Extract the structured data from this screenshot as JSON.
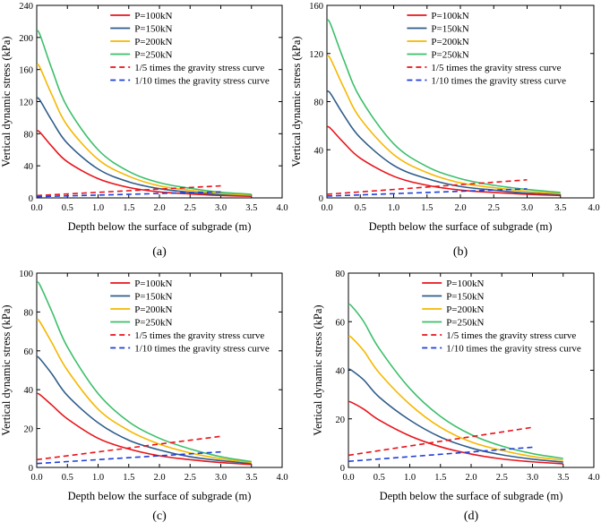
{
  "chart_data": [
    {
      "type": "line",
      "panel_label": "(a)",
      "xlabel": "Depth below the surface of subgrade (m)",
      "ylabel": "Vertical dynamic stress (kPa)",
      "xlim": [
        0.0,
        4.0
      ],
      "ylim": [
        0,
        240
      ],
      "xticks": [
        "0.0",
        "0.5",
        "1.0",
        "1.5",
        "2.0",
        "2.5",
        "3.0",
        "3.5",
        "4.0"
      ],
      "yticks": [
        "0",
        "40",
        "80",
        "120",
        "160",
        "200",
        "240"
      ],
      "series": [
        {
          "name": "P=100kN",
          "color": "#e8141b",
          "dash": "solid",
          "x": [
            0,
            0.05,
            0.25,
            0.5,
            1.0,
            1.5,
            2.0,
            2.5,
            3.0,
            3.5
          ],
          "values": [
            83,
            82,
            64,
            45,
            24,
            13,
            7.5,
            5,
            3,
            2
          ]
        },
        {
          "name": "P=150kN",
          "color": "#2f5d8a",
          "dash": "solid",
          "x": [
            0,
            0.05,
            0.25,
            0.5,
            1.0,
            1.5,
            2.0,
            2.5,
            3.0,
            3.5
          ],
          "values": [
            124,
            122,
            96,
            68,
            36,
            20,
            11.5,
            7,
            4,
            3
          ]
        },
        {
          "name": "P=200kN",
          "color": "#f5b800",
          "dash": "solid",
          "x": [
            0,
            0.05,
            0.25,
            0.5,
            1.0,
            1.5,
            2.0,
            2.5,
            3.0,
            3.5
          ],
          "values": [
            166,
            163,
            128,
            90,
            48,
            27,
            15,
            9.5,
            5.5,
            3.5
          ]
        },
        {
          "name": "P=250kN",
          "color": "#3cbf6a",
          "dash": "solid",
          "x": [
            0,
            0.05,
            0.25,
            0.5,
            1.0,
            1.5,
            2.0,
            2.5,
            3.0,
            3.5
          ],
          "values": [
            207,
            204,
            160,
            113,
            60,
            33,
            19,
            12,
            7,
            4.5
          ]
        },
        {
          "name": "1/5 times the gravity stress curve",
          "color": "#e8141b",
          "dash": "dashed",
          "x": [
            0,
            3.0
          ],
          "values": [
            2.9,
            15
          ]
        },
        {
          "name": "1/10 times the gravity stress curve",
          "color": "#1f3fd8",
          "dash": "dashed",
          "x": [
            0,
            3.0
          ],
          "values": [
            1.5,
            7.5
          ]
        }
      ]
    },
    {
      "type": "line",
      "panel_label": "(b)",
      "xlabel": "Depth below the surface of subgrade (m)",
      "ylabel": "Vertical dynamic stress (kPa)",
      "xlim": [
        0.0,
        4.0
      ],
      "ylim": [
        0,
        160
      ],
      "xticks": [
        "0.0",
        "0.5",
        "1.0",
        "1.5",
        "2.0",
        "2.5",
        "3.0",
        "3.5",
        "4.0"
      ],
      "yticks": [
        "0",
        "40",
        "80",
        "120",
        "160"
      ],
      "series": [
        {
          "name": "P=100kN",
          "color": "#e8141b",
          "dash": "solid",
          "x": [
            0,
            0.05,
            0.25,
            0.5,
            1.0,
            1.5,
            2.0,
            2.5,
            3.0,
            3.5
          ],
          "values": [
            59,
            58,
            46,
            33,
            18,
            10.5,
            6.5,
            4.5,
            3,
            2
          ]
        },
        {
          "name": "P=150kN",
          "color": "#2f5d8a",
          "dash": "solid",
          "x": [
            0,
            0.05,
            0.25,
            0.5,
            1.0,
            1.5,
            2.0,
            2.5,
            3.0,
            3.5
          ],
          "values": [
            88,
            87,
            69,
            50,
            27,
            16,
            9.5,
            6.5,
            4,
            3
          ]
        },
        {
          "name": "P=200kN",
          "color": "#f5b800",
          "dash": "solid",
          "x": [
            0,
            0.05,
            0.25,
            0.5,
            1.0,
            1.5,
            2.0,
            2.5,
            3.0,
            3.5
          ],
          "values": [
            117,
            116,
            92,
            66,
            36,
            21,
            12.5,
            8.5,
            5.5,
            3.5
          ]
        },
        {
          "name": "P=250kN",
          "color": "#3cbf6a",
          "dash": "solid",
          "x": [
            0,
            0.05,
            0.25,
            0.5,
            1.0,
            1.5,
            2.0,
            2.5,
            3.0,
            3.5
          ],
          "values": [
            147,
            145,
            115,
            83,
            45,
            26,
            16,
            10.5,
            7,
            4.5
          ]
        },
        {
          "name": "1/5 times the gravity stress curve",
          "color": "#e8141b",
          "dash": "dashed",
          "x": [
            0,
            3.0
          ],
          "values": [
            3,
            15
          ]
        },
        {
          "name": "1/10 times the gravity stress curve",
          "color": "#1f3fd8",
          "dash": "dashed",
          "x": [
            0,
            3.0
          ],
          "values": [
            1.5,
            7.5
          ]
        }
      ]
    },
    {
      "type": "line",
      "panel_label": "(c)",
      "xlabel": "Depth below the surface of subgrade (m)",
      "ylabel": "Vertical dynamic stress (kPa)",
      "xlim": [
        0.0,
        4.0
      ],
      "ylim": [
        0,
        100
      ],
      "xticks": [
        "0.0",
        "0.5",
        "1.0",
        "1.5",
        "2.0",
        "2.5",
        "3.0",
        "3.5",
        "4.0"
      ],
      "yticks": [
        "0",
        "20",
        "40",
        "60",
        "80",
        "100"
      ],
      "series": [
        {
          "name": "P=100kN",
          "color": "#e8141b",
          "dash": "solid",
          "x": [
            0,
            0.05,
            0.25,
            0.5,
            1.0,
            1.5,
            2.0,
            2.5,
            3.0,
            3.5
          ],
          "values": [
            38,
            37.5,
            32,
            25,
            15,
            9.5,
            6,
            4,
            2.5,
            1.5
          ]
        },
        {
          "name": "P=150kN",
          "color": "#2f5d8a",
          "dash": "solid",
          "x": [
            0,
            0.05,
            0.25,
            0.5,
            1.0,
            1.5,
            2.0,
            2.5,
            3.0,
            3.5
          ],
          "values": [
            57,
            56,
            48,
            37,
            23,
            14,
            9,
            5.5,
            3.5,
            2
          ]
        },
        {
          "name": "P=200kN",
          "color": "#f5b800",
          "dash": "solid",
          "x": [
            0,
            0.05,
            0.25,
            0.5,
            1.0,
            1.5,
            2.0,
            2.5,
            3.0,
            3.5
          ],
          "values": [
            76,
            75,
            64,
            50,
            30,
            19,
            12,
            7.5,
            4.5,
            2.5
          ]
        },
        {
          "name": "P=250kN",
          "color": "#3cbf6a",
          "dash": "solid",
          "x": [
            0,
            0.05,
            0.25,
            0.5,
            1.0,
            1.5,
            2.0,
            2.5,
            3.0,
            3.5
          ],
          "values": [
            95,
            94,
            80,
            62,
            38,
            23.5,
            15,
            9.5,
            5.5,
            3
          ]
        },
        {
          "name": "1/5 times the gravity stress curve",
          "color": "#e8141b",
          "dash": "dashed",
          "x": [
            0,
            3.0
          ],
          "values": [
            4,
            16
          ]
        },
        {
          "name": "1/10 times the gravity stress curve",
          "color": "#1f3fd8",
          "dash": "dashed",
          "x": [
            0,
            3.0
          ],
          "values": [
            2,
            8
          ]
        }
      ]
    },
    {
      "type": "line",
      "panel_label": "(d)",
      "xlabel": "Depth below the surface of subgrade (m)",
      "ylabel": "Vertical dynamic stress (kPa)",
      "xlim": [
        0.0,
        4.0
      ],
      "ylim": [
        0,
        80
      ],
      "xticks": [
        "0.0",
        "0.5",
        "1.0",
        "1.5",
        "2.0",
        "2.5",
        "3.0",
        "3.5",
        "4.0"
      ],
      "yticks": [
        "0",
        "20",
        "40",
        "60",
        "80"
      ],
      "series": [
        {
          "name": "P=100kN",
          "color": "#e8141b",
          "dash": "solid",
          "x": [
            0,
            0.05,
            0.25,
            0.5,
            1.0,
            1.5,
            2.0,
            2.5,
            3.0,
            3.5
          ],
          "values": [
            27,
            26.8,
            24,
            19.5,
            13,
            8.5,
            5.5,
            3.5,
            2.3,
            1.5
          ]
        },
        {
          "name": "P=150kN",
          "color": "#2f5d8a",
          "dash": "solid",
          "x": [
            0,
            0.05,
            0.25,
            0.5,
            1.0,
            1.5,
            2.0,
            2.5,
            3.0,
            3.5
          ],
          "values": [
            40.5,
            40,
            36,
            29,
            19.5,
            12.5,
            8,
            5.2,
            3.4,
            2.2
          ]
        },
        {
          "name": "P=200kN",
          "color": "#f5b800",
          "dash": "solid",
          "x": [
            0,
            0.05,
            0.25,
            0.5,
            1.0,
            1.5,
            2.0,
            2.5,
            3.0,
            3.5
          ],
          "values": [
            54,
            53.5,
            48,
            39,
            26,
            16.5,
            10.5,
            7,
            4.5,
            3
          ]
        },
        {
          "name": "P=250kN",
          "color": "#3cbf6a",
          "dash": "solid",
          "x": [
            0,
            0.05,
            0.25,
            0.5,
            1.0,
            1.5,
            2.0,
            2.5,
            3.0,
            3.5
          ],
          "values": [
            67,
            66.5,
            60,
            49,
            32.5,
            21,
            13.5,
            8.8,
            5.7,
            3.7
          ]
        },
        {
          "name": "1/5 times the gravity stress curve",
          "color": "#e8141b",
          "dash": "dashed",
          "x": [
            0,
            3.0
          ],
          "values": [
            5,
            16.5
          ]
        },
        {
          "name": "1/10 times the gravity stress curve",
          "color": "#1f3fd8",
          "dash": "dashed",
          "x": [
            0,
            3.0
          ],
          "values": [
            2.5,
            8.3
          ]
        }
      ]
    }
  ]
}
